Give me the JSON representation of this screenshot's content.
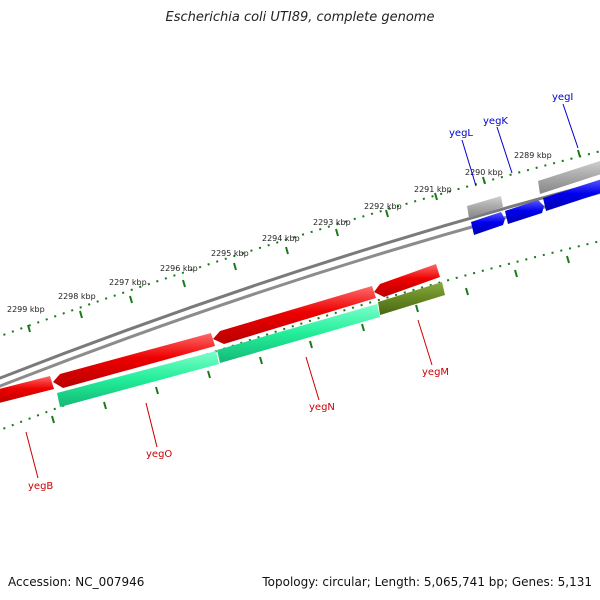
{
  "title": "Escherichia coli UTI89, complete genome",
  "footer": {
    "accession": "Accession: NC_007946",
    "topology": "Topology: circular; Length: 5,065,741 bp; Genes: 5,131"
  },
  "colors": {
    "forward_gene": "#0000ee",
    "reverse_gene": "#ee0000",
    "pseudo_gene": "#a0a0a0",
    "reverse_feature_a": "#22ee99",
    "reverse_feature_b": "#668822",
    "backbone": "#808080",
    "ticks": "#1a7a1a",
    "label_forward": "#0000cc",
    "label_reverse": "#cc0000"
  },
  "scale_labels": [
    "2289 kbp",
    "2290 kbp",
    "2291 kbp",
    "2292 kbp",
    "2293 kbp",
    "2294 kbp",
    "2295 kbp",
    "2296 kbp",
    "2297 kbp",
    "2298 kbp",
    "2299 kbp"
  ],
  "genes": [
    {
      "label": "yegI",
      "strand": "forward"
    },
    {
      "label": "yegK",
      "strand": "forward"
    },
    {
      "label": "yegL",
      "strand": "forward"
    },
    {
      "label": "yegM",
      "strand": "reverse"
    },
    {
      "label": "yegN",
      "strand": "reverse"
    },
    {
      "label": "yegO",
      "strand": "reverse"
    },
    {
      "label": "yegB",
      "strand": "reverse"
    }
  ]
}
